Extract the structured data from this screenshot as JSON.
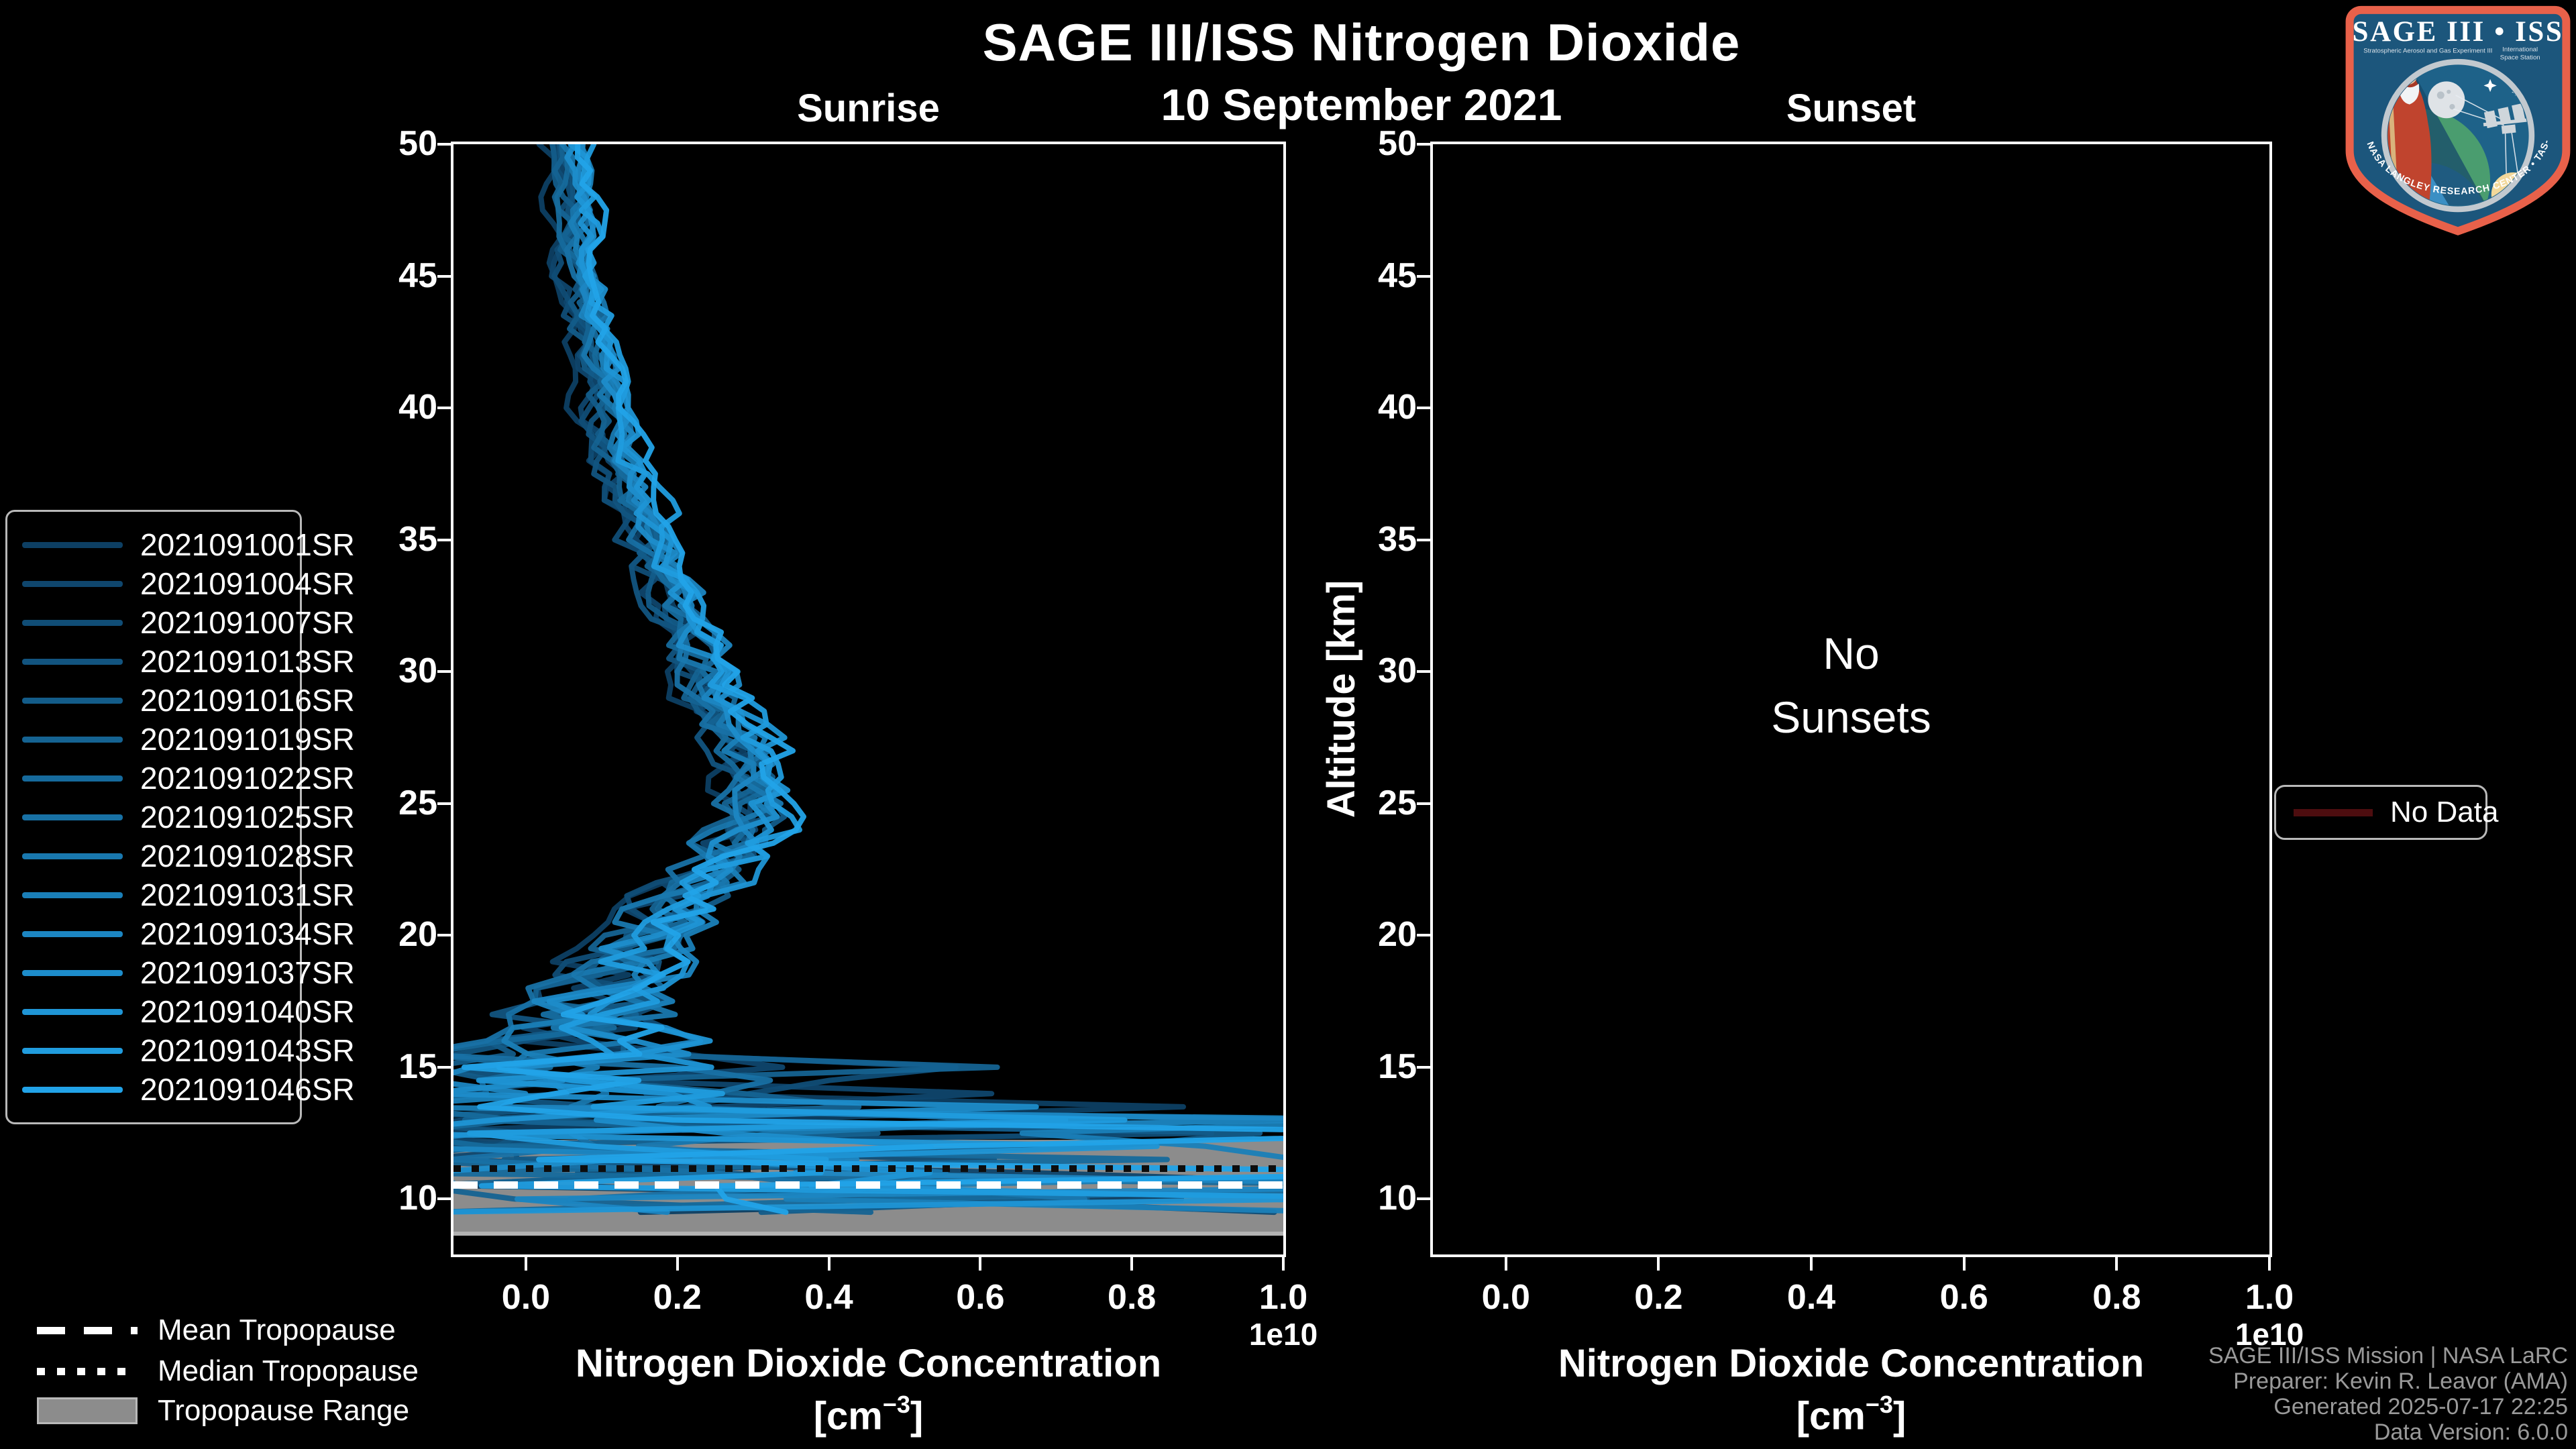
{
  "title": "SAGE III/ISS Nitrogen Dioxide",
  "subtitle": "10 September 2021",
  "panels": {
    "left_label": "Sunrise",
    "right_label": "Sunset"
  },
  "axes": {
    "ylabel": "Altitude [km]",
    "xlabel": "Nitrogen Dioxide Concentration",
    "xlabel_unit_pre": "[cm",
    "xlabel_unit_sup": "−3",
    "xlabel_unit_post": "]",
    "x_offset_label": "1e10",
    "x_ticks": [
      "0.0",
      "0.2",
      "0.4",
      "0.6",
      "0.8",
      "1.0"
    ],
    "x_tick_values": [
      0,
      0.2,
      0.4,
      0.6,
      0.8,
      1.0
    ],
    "y_ticks": [
      10,
      15,
      20,
      25,
      30,
      35,
      40,
      45,
      50
    ],
    "xlim_1e10": [
      -0.0956,
      1.0
    ],
    "ylim_km": [
      7.9,
      50
    ]
  },
  "no_sunsets": {
    "line1": "No",
    "line2": "Sunsets"
  },
  "tropopause_legend": {
    "mean": "Mean Tropopause",
    "median": "Median Tropopause",
    "range": "Tropopause Range"
  },
  "no_data_label": "No Data",
  "attribution": {
    "line1": "SAGE III/ISS Mission | NASA LaRC",
    "line2": "Preparer: Kevin R. Leavor (AMA)",
    "line3": "Generated 2025-07-17 22:25",
    "line4": "Data Version: 6.0.0"
  },
  "logo": {
    "title": "SAGE III • ISS",
    "subtitle_left": "Stratospheric Aerosol and Gas Experiment III",
    "subtitle_right_1": "International",
    "subtitle_right_2": "Space Station",
    "ring_text": "BALL • NASA LANGLEY RESEARCH CENTER • TAS-I • ESA"
  },
  "colors": {
    "background": "#000000",
    "foreground": "#ffffff",
    "muted_text": "#9a9a9a",
    "tropopause_band": "#8c8c8c",
    "no_data_line": "#4d0d0f",
    "legend_border": "#b9b9b9"
  },
  "chart_data": {
    "type": "line",
    "title": "SAGE III/ISS Nitrogen Dioxide",
    "subtitle": "10 September 2021",
    "layout": "two vertical profile panels, black background, white spines, legend of events left, tropopause legend bottom-left, No Data legend right",
    "x_units": "1e10 cm^-3",
    "y_units": "km",
    "panels": [
      {
        "name": "Sunrise",
        "xlim_1e10": [
          -0.0956,
          1.0
        ],
        "ylim_km": [
          7.9,
          50
        ],
        "x_ticks_1e10": [
          0,
          0.2,
          0.4,
          0.6,
          0.8,
          1.0
        ],
        "y_ticks_km": [
          10,
          15,
          20,
          25,
          30,
          35,
          40,
          45,
          50
        ],
        "series": [
          {
            "id": "2021091001SR",
            "color": "#0d3f63",
            "seed": 77
          },
          {
            "id": "2021091004SR",
            "color": "#0f466d",
            "seed": 10050
          },
          {
            "id": "2021091007SR",
            "color": "#104d76",
            "seed": 20023
          },
          {
            "id": "2021091013SR",
            "color": "#12547f",
            "seed": 29996
          },
          {
            "id": "2021091016SR",
            "color": "#135c89",
            "seed": 39969
          },
          {
            "id": "2021091019SR",
            "color": "#156392",
            "seed": 49942
          },
          {
            "id": "2021091022SR",
            "color": "#166a9c",
            "seed": 59915
          },
          {
            "id": "2021091025SR",
            "color": "#1871a5",
            "seed": 69888
          },
          {
            "id": "2021091028SR",
            "color": "#1978af",
            "seed": 79861
          },
          {
            "id": "2021091031SR",
            "color": "#1a7fb8",
            "seed": 89834
          },
          {
            "id": "2021091034SR",
            "color": "#1c86c2",
            "seed": 99807
          },
          {
            "id": "2021091037SR",
            "color": "#1d8dcb",
            "seed": 109780
          },
          {
            "id": "2021091040SR",
            "color": "#1f95d5",
            "seed": 119753
          },
          {
            "id": "2021091043SR",
            "color": "#209cde",
            "seed": 129726
          },
          {
            "id": "2021091046SR",
            "color": "#22a3e8",
            "seed": 139699
          }
        ],
        "mean_profile_alt_km_vs_conc_1e10": [
          [
            50,
            0.055
          ],
          [
            48,
            0.062
          ],
          [
            46,
            0.07
          ],
          [
            44,
            0.08
          ],
          [
            42,
            0.092
          ],
          [
            40,
            0.108
          ],
          [
            38,
            0.127
          ],
          [
            36,
            0.148
          ],
          [
            34,
            0.175
          ],
          [
            32,
            0.205
          ],
          [
            30,
            0.238
          ],
          [
            28,
            0.272
          ],
          [
            26.5,
            0.295
          ],
          [
            25,
            0.3
          ],
          [
            24,
            0.285
          ],
          [
            23,
            0.26
          ],
          [
            22,
            0.225
          ],
          [
            21,
            0.19
          ],
          [
            20,
            0.16
          ],
          [
            19,
            0.135
          ],
          [
            18,
            0.11
          ],
          [
            17,
            0.09
          ],
          [
            16,
            0.08
          ],
          [
            15,
            0.08
          ],
          [
            14,
            0.09
          ],
          [
            13,
            0.11
          ],
          [
            12,
            0.14
          ],
          [
            11,
            0.16
          ],
          [
            10,
            0.21
          ],
          [
            9.5,
            0.24
          ],
          [
            9,
            0.2
          ]
        ],
        "noise_amplitude_1e10_by_alt_km": [
          [
            50,
            0.013
          ],
          [
            42,
            0.016
          ],
          [
            36,
            0.02
          ],
          [
            30,
            0.026
          ],
          [
            26,
            0.032
          ],
          [
            22,
            0.042
          ],
          [
            20,
            0.055
          ],
          [
            18,
            0.08
          ],
          [
            16.5,
            0.11
          ],
          [
            15.5,
            0.16
          ],
          [
            14.5,
            0.22
          ],
          [
            13.5,
            0.28
          ],
          [
            12.5,
            0.33
          ],
          [
            11,
            0.35
          ],
          [
            9,
            0.36
          ]
        ],
        "profile_step_km": 0.5,
        "profile_bottom_km_range": [
          8.9,
          10.2
        ],
        "tropopause_km": {
          "mean": 10.55,
          "median": 11.15,
          "range": [
            8.6,
            12.25
          ]
        }
      },
      {
        "name": "Sunset",
        "xlim_1e10": [
          -0.0956,
          1.0
        ],
        "ylim_km": [
          7.9,
          50
        ],
        "x_ticks_1e10": [
          0,
          0.2,
          0.4,
          0.6,
          0.8,
          1.0
        ],
        "y_ticks_km": [
          10,
          15,
          20,
          25,
          30,
          35,
          40,
          45,
          50
        ],
        "annotation": "No Sunsets",
        "series": []
      }
    ],
    "legend_right": "No Data"
  }
}
